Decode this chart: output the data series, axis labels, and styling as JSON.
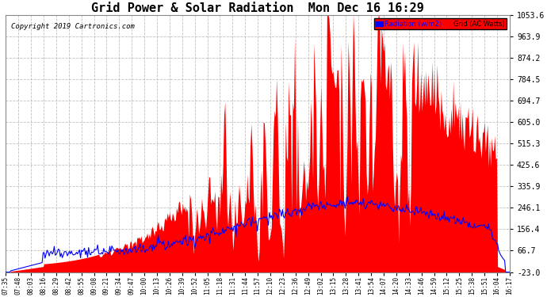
{
  "title": "Grid Power & Solar Radiation  Mon Dec 16 16:29",
  "copyright": "Copyright 2019 Cartronics.com",
  "legend_labels": [
    "Radiation (w/m2)",
    "Grid (AC Watts)"
  ],
  "yticks": [
    1053.6,
    963.9,
    874.2,
    784.5,
    694.7,
    605.0,
    515.3,
    425.6,
    335.9,
    246.1,
    156.4,
    66.7,
    -23.0
  ],
  "ymin": -23.0,
  "ymax": 1053.6,
  "background_color": "#ffffff",
  "grid_color": "#bbbbbb",
  "fill_color": "#ff0000",
  "line_color": "#0000ff",
  "title_fontsize": 11,
  "xtick_labels": [
    "07:35",
    "07:48",
    "08:03",
    "08:16",
    "08:29",
    "08:42",
    "08:55",
    "09:08",
    "09:21",
    "09:34",
    "09:47",
    "10:00",
    "10:13",
    "10:26",
    "10:39",
    "10:52",
    "11:05",
    "11:18",
    "11:31",
    "11:44",
    "11:57",
    "12:10",
    "12:23",
    "12:36",
    "12:49",
    "13:02",
    "13:15",
    "13:28",
    "13:41",
    "13:54",
    "14:07",
    "14:20",
    "14:33",
    "14:46",
    "14:59",
    "15:12",
    "15:25",
    "15:38",
    "15:51",
    "16:04",
    "16:17"
  ],
  "num_points": 500
}
